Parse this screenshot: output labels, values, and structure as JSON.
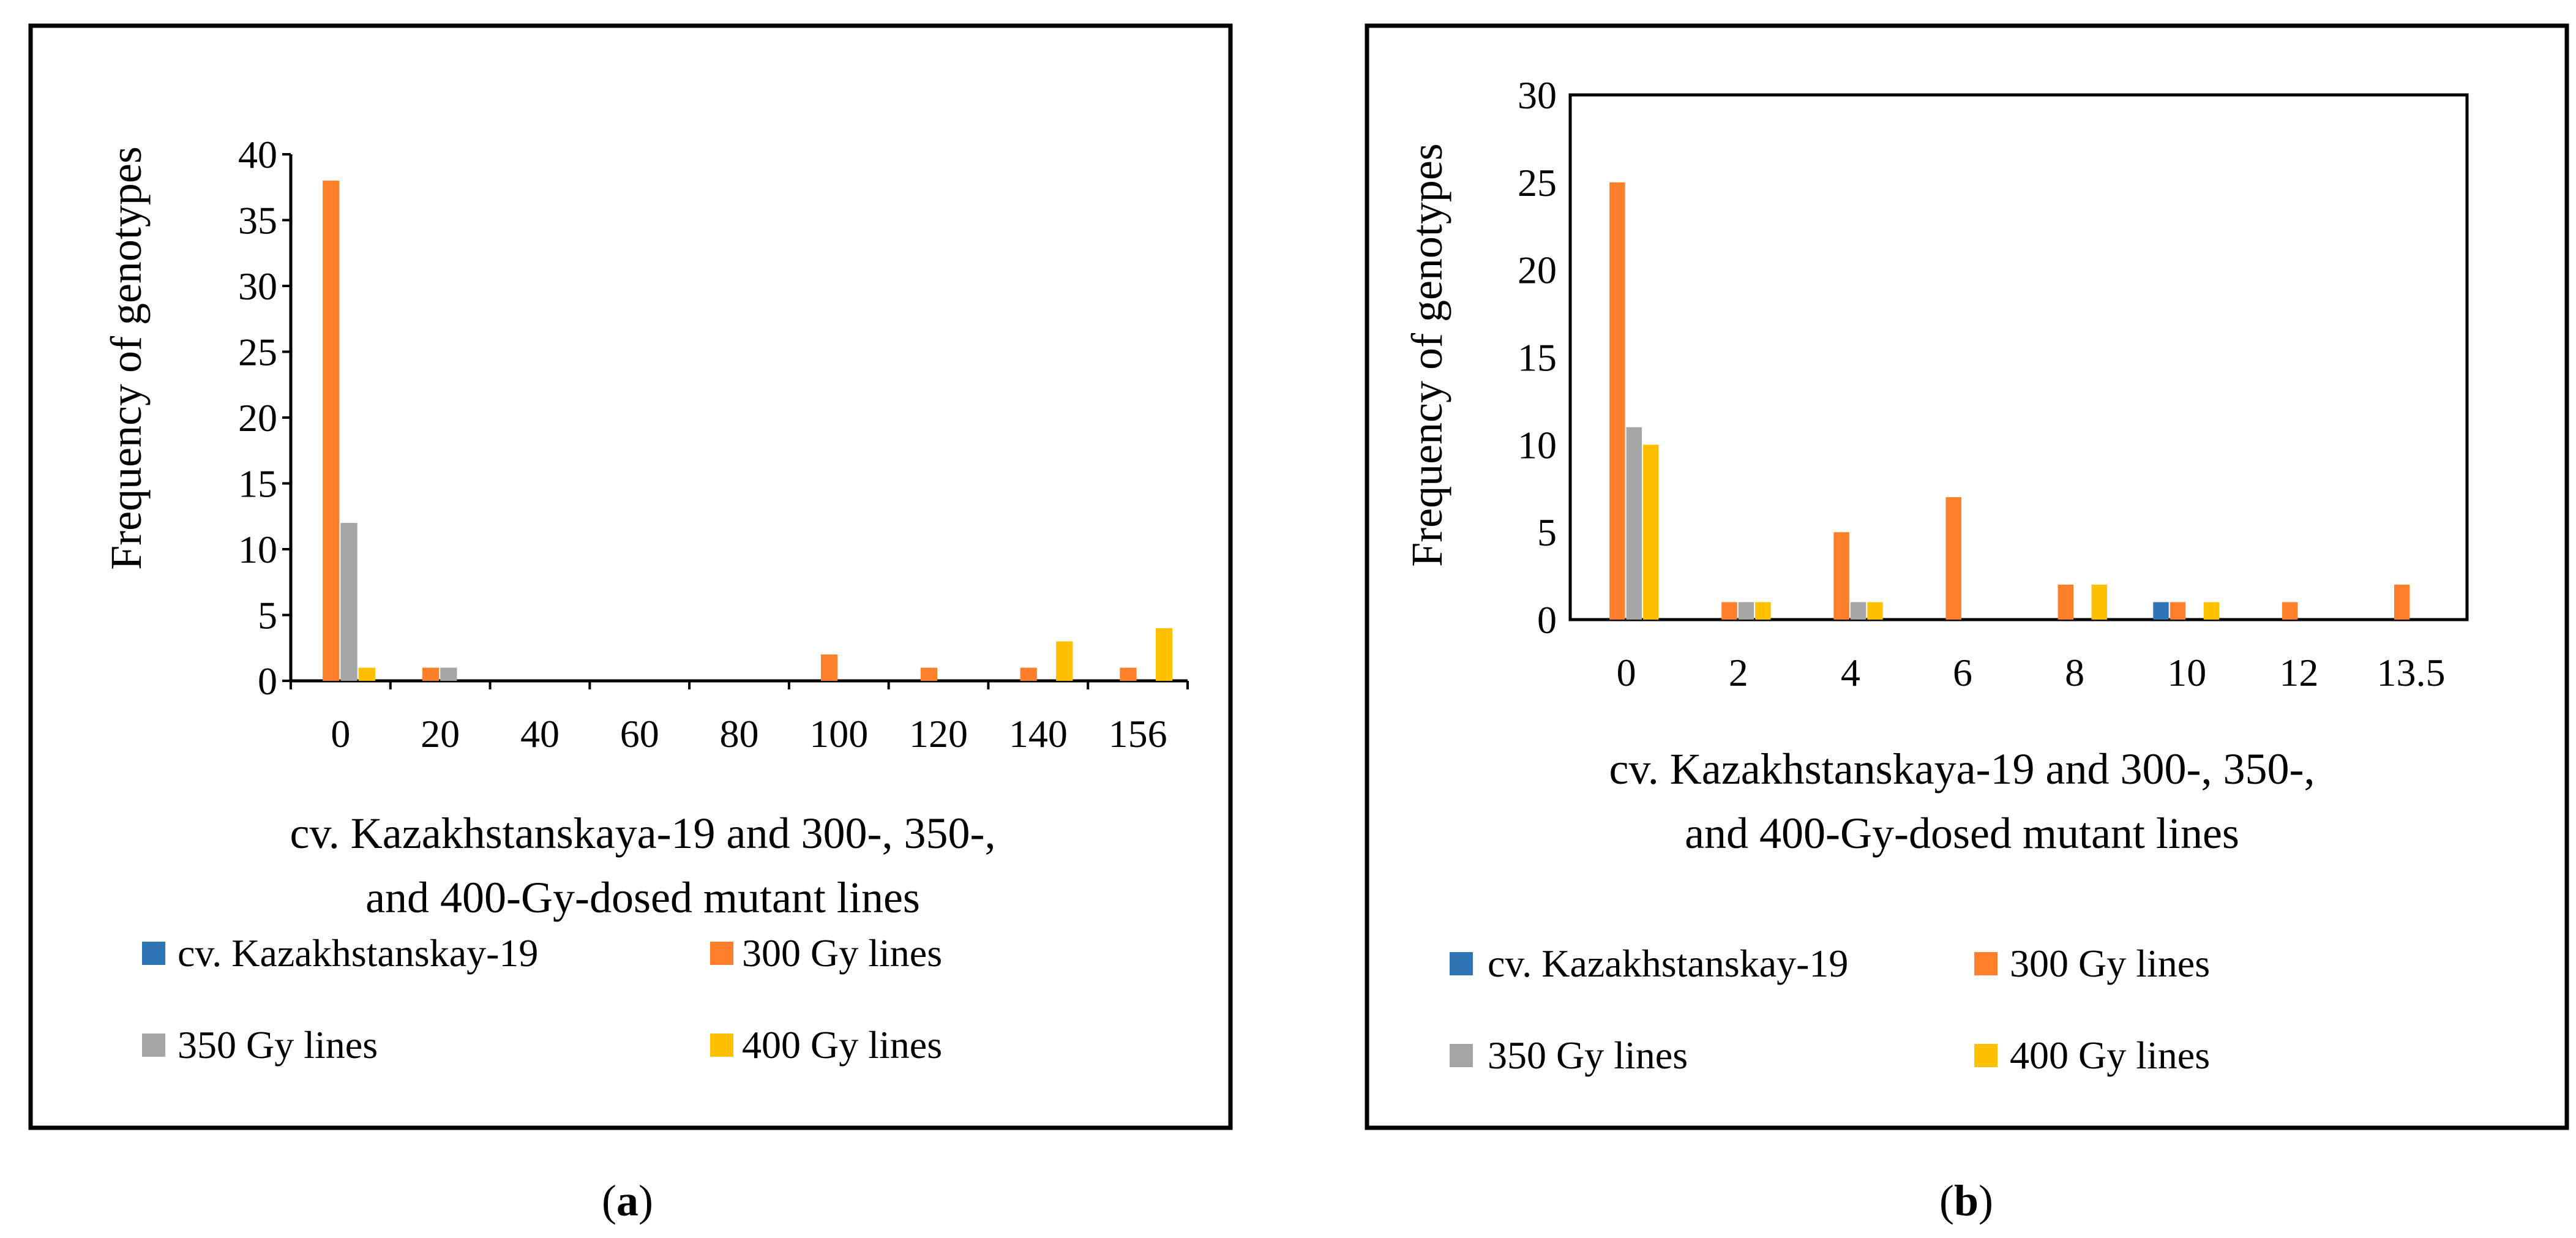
{
  "colors": {
    "series_1": "#2E75B6",
    "series_2": "#FF7F2A",
    "series_3": "#A5A5A5",
    "series_4": "#FFC000"
  },
  "chart_data": [
    {
      "type": "bar",
      "panel_label": "a",
      "ylabel": "Frequency of genotypes",
      "xlabel_lines": [
        "cv. Kazakhstanskaya-19 and 300-, 350-,",
        "and 400-Gy-dosed mutant lines"
      ],
      "ylim": [
        0,
        40
      ],
      "yticks": [
        "0",
        "5",
        "10",
        "15",
        "20",
        "25",
        "30",
        "35",
        "40"
      ],
      "categories": [
        "0",
        "20",
        "40",
        "60",
        "80",
        "100",
        "120",
        "140",
        "156"
      ],
      "series": [
        {
          "name": "cv. Kazakhstanskay-19",
          "values": [
            0,
            0,
            0,
            0,
            0,
            0,
            0,
            0,
            0
          ]
        },
        {
          "name": "300 Gy lines",
          "values": [
            38,
            1,
            0,
            0,
            0,
            2,
            1,
            1,
            1
          ]
        },
        {
          "name": "350 Gy lines",
          "values": [
            12,
            1,
            0,
            0,
            0,
            0,
            0,
            0,
            0
          ]
        },
        {
          "name": "400 Gy lines",
          "values": [
            1,
            0,
            0,
            0,
            0,
            0,
            0,
            3,
            4
          ]
        }
      ],
      "legend_position": "bottom",
      "plot_border": false
    },
    {
      "type": "bar",
      "panel_label": "b",
      "ylabel": "Frequency of genotypes",
      "xlabel_lines": [
        "cv. Kazakhstanskaya-19 and 300-, 350-,",
        "and 400-Gy-dosed mutant lines"
      ],
      "ylim": [
        0,
        30
      ],
      "yticks": [
        "0",
        "5",
        "10",
        "15",
        "20",
        "25",
        "30"
      ],
      "categories": [
        "0",
        "2",
        "4",
        "6",
        "8",
        "10",
        "12",
        "13.5"
      ],
      "series": [
        {
          "name": "cv. Kazakhstanskay-19",
          "values": [
            0,
            0,
            0,
            0,
            0,
            1,
            0,
            0
          ]
        },
        {
          "name": "300 Gy lines",
          "values": [
            25,
            1,
            5,
            7,
            2,
            1,
            1,
            2
          ]
        },
        {
          "name": "350 Gy lines",
          "values": [
            11,
            1,
            1,
            0,
            0,
            0,
            0,
            0
          ]
        },
        {
          "name": "400 Gy lines",
          "values": [
            10,
            1,
            1,
            0,
            2,
            1,
            0,
            0
          ]
        }
      ],
      "legend_position": "bottom",
      "plot_border": true
    }
  ]
}
